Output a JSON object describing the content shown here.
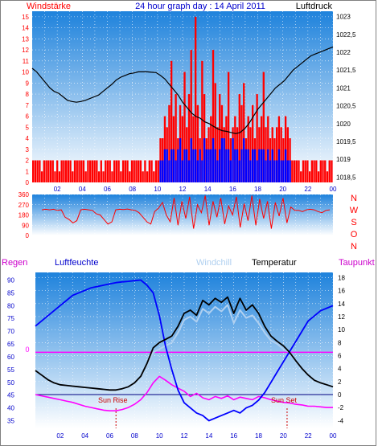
{
  "header": {
    "title": "24 hour graph day : 14 April 2011",
    "left_label": "Windstärke",
    "right_label": "Luftdruck"
  },
  "colors": {
    "wind_bar": "#ff0000",
    "wind_low_bar": "#0000ff",
    "pressure_line": "#000000",
    "direction": "#ff0000",
    "temperature": "#000000",
    "windchill": "#b0d0f0",
    "humidity": "#0000ff",
    "dewpoint": "#ff00ff",
    "zero_line": "#ff00ff",
    "grid": "#ffffff",
    "sun_text": "#cc0000",
    "axis_text_red": "#ff0000",
    "axis_text_blue": "#0000cc",
    "background_top": "#1e82dc",
    "background_bottom": "#ffffff"
  },
  "chart_data": [
    {
      "type": "bar",
      "name_label": "Windstärke",
      "y_ticks": [
        0,
        1,
        2,
        3,
        4,
        5,
        6,
        7,
        8,
        9,
        10,
        11,
        12,
        13,
        14,
        15
      ],
      "ylim": [
        0,
        15.5
      ],
      "x_ticks": [
        "02",
        "04",
        "06",
        "08",
        "10",
        "12",
        "14",
        "16",
        "18",
        "20",
        "22",
        "00"
      ],
      "series_wind": [
        2,
        2,
        2,
        2,
        1,
        2,
        2,
        2,
        2,
        2,
        1,
        2,
        1,
        2,
        2,
        2,
        2,
        2,
        1,
        2,
        2,
        2,
        2,
        2,
        1,
        2,
        2,
        2,
        2,
        2,
        1,
        2,
        1,
        2,
        2,
        2,
        1,
        2,
        2,
        2,
        1,
        2,
        2,
        2,
        1,
        2,
        2,
        2,
        2,
        2,
        1,
        2,
        1,
        2,
        2,
        1,
        2,
        2,
        4,
        4,
        6,
        5,
        7,
        11,
        6,
        8,
        4,
        7,
        6,
        10,
        5,
        8,
        12,
        6,
        15,
        7,
        4,
        11,
        8,
        4,
        5,
        6,
        12,
        9,
        5,
        8,
        7,
        5,
        6,
        10,
        4,
        5,
        6,
        5,
        8,
        7,
        9,
        4,
        6,
        5,
        7,
        4,
        8,
        5,
        6,
        10,
        5,
        6,
        4,
        5,
        4,
        5,
        6,
        5,
        4,
        6,
        5,
        4,
        2,
        2,
        2,
        2,
        1,
        2,
        2,
        2,
        1,
        2,
        2,
        2,
        1,
        2,
        2,
        2,
        1,
        2,
        2
      ],
      "series_wind_low": [
        0,
        0,
        0,
        0,
        0,
        0,
        0,
        0,
        0,
        0,
        0,
        0,
        0,
        0,
        0,
        0,
        0,
        0,
        0,
        0,
        0,
        0,
        0,
        0,
        0,
        0,
        0,
        0,
        0,
        0,
        0,
        0,
        0,
        0,
        0,
        0,
        0,
        0,
        0,
        0,
        0,
        0,
        0,
        0,
        0,
        0,
        0,
        0,
        0,
        0,
        0,
        0,
        0,
        0,
        0,
        0,
        0,
        0,
        2,
        2,
        3,
        3,
        2,
        3,
        3,
        2,
        3,
        4,
        2,
        3,
        3,
        2,
        4,
        3,
        3,
        2,
        3,
        2,
        4,
        3,
        3,
        3,
        4,
        3,
        2,
        3,
        4,
        4,
        3,
        3,
        2,
        4,
        3,
        3,
        2,
        3,
        4,
        3,
        3,
        2,
        3,
        3,
        2,
        3,
        3,
        3,
        2,
        3,
        2,
        3,
        2,
        2,
        3,
        2,
        2,
        3,
        2,
        2,
        0,
        0,
        0,
        0,
        0,
        0,
        0,
        0,
        0,
        0,
        0,
        0,
        0,
        0,
        0,
        0,
        0,
        0,
        0
      ],
      "y2_ticks": [
        1018.5,
        1019,
        1019.5,
        1020,
        1020.5,
        1021,
        1021.5,
        1022,
        1022.5,
        1023
      ],
      "y2_tick_labels": [
        "1018,5",
        "1019",
        "1019,5",
        "1020",
        "1020,5",
        "1021",
        "1021,5",
        "1022",
        "1022,5",
        "1023"
      ],
      "y2lim": [
        1018.35,
        1023.15
      ],
      "pressure": [
        1021.55,
        1021.45,
        1021.3,
        1021.15,
        1021.0,
        1020.9,
        1020.85,
        1020.75,
        1020.65,
        1020.62,
        1020.6,
        1020.62,
        1020.65,
        1020.7,
        1020.75,
        1020.8,
        1020.9,
        1021.0,
        1021.1,
        1021.22,
        1021.3,
        1021.35,
        1021.4,
        1021.42,
        1021.45,
        1021.45,
        1021.45,
        1021.44,
        1021.43,
        1021.35,
        1021.25,
        1021.1,
        1020.95,
        1020.8,
        1020.6,
        1020.45,
        1020.3,
        1020.2,
        1020.15,
        1020.05,
        1020.0,
        1019.92,
        1019.85,
        1019.8,
        1019.78,
        1019.75,
        1019.72,
        1019.75,
        1019.85,
        1020.0,
        1020.2,
        1020.4,
        1020.55,
        1020.7,
        1020.85,
        1021.0,
        1021.1,
        1021.2,
        1021.35,
        1021.5,
        1021.6,
        1021.7,
        1021.8,
        1021.9,
        1021.95,
        1022.0,
        1022.05,
        1022.1,
        1022.15
      ]
    },
    {
      "type": "line",
      "name_label": "direction",
      "y_ticks": [
        0,
        90,
        180,
        270,
        360
      ],
      "ylim": [
        0,
        360
      ],
      "direction_letters": [
        "N",
        "W",
        "S",
        "O",
        "N"
      ],
      "direction": [
        225,
        230,
        225,
        230,
        220,
        225,
        160,
        140,
        110,
        130,
        225,
        230,
        225,
        220,
        190,
        180,
        140,
        100,
        120,
        225,
        230,
        228,
        232,
        225,
        220,
        200,
        160,
        120,
        100,
        210,
        240,
        290,
        180,
        120,
        330,
        90,
        300,
        150,
        340,
        60,
        270,
        200,
        350,
        90,
        300,
        160,
        330,
        100,
        260,
        180,
        340,
        70,
        280,
        130,
        350,
        90,
        320,
        150,
        300,
        60,
        290,
        170,
        330,
        110,
        250,
        220,
        220,
        210,
        225,
        230,
        225,
        210,
        200,
        220,
        225
      ]
    },
    {
      "type": "line",
      "labels": {
        "regen": "Regen",
        "luftfeuchte": "Luftfeuchte",
        "windchill": "Windchill",
        "temperatur": "Temperatur",
        "taupunkt": "Taupunkt"
      },
      "y_ticks_humidity": [
        35,
        40,
        45,
        50,
        55,
        60,
        65,
        70,
        75,
        80,
        85,
        90
      ],
      "ylim_humidity": [
        32,
        93
      ],
      "y_ticks_temp": [
        -4,
        -2,
        0,
        2,
        4,
        6,
        8,
        10,
        12,
        14,
        16,
        18
      ],
      "ylim_temp": [
        -5.2,
        18.8
      ],
      "zero_line_label": "0",
      "zero_line_value": 6.5,
      "sun_rise_label": "Sun Rise",
      "sun_set_label": "Sun Set",
      "sun_rise_hour": 6.5,
      "sun_set_hour": 20.3,
      "x_ticks": [
        "02",
        "04",
        "06",
        "08",
        "10",
        "12",
        "14",
        "16",
        "18",
        "20",
        "22",
        "00"
      ],
      "hours": [
        0,
        0.5,
        1,
        1.5,
        2,
        2.5,
        3,
        3.5,
        4,
        4.5,
        5,
        5.5,
        6,
        6.5,
        7,
        7.5,
        8,
        8.5,
        9,
        9.5,
        10,
        10.5,
        11,
        11.5,
        12,
        12.5,
        13,
        13.5,
        14,
        14.5,
        15,
        15.5,
        16,
        16.5,
        17,
        17.5,
        18,
        18.5,
        19,
        19.5,
        20,
        20.5,
        21,
        21.5,
        22,
        22.5,
        23,
        23.5,
        24
      ],
      "temperature": [
        3.7,
        3.0,
        2.3,
        1.8,
        1.5,
        1.4,
        1.3,
        1.2,
        1.1,
        1.0,
        0.9,
        0.8,
        0.7,
        0.7,
        0.9,
        1.2,
        1.8,
        2.8,
        4.8,
        7.2,
        8.0,
        8.5,
        9.0,
        10.5,
        12.5,
        13.0,
        12.2,
        14.5,
        13.8,
        14.8,
        14.2,
        15.0,
        12.5,
        14.8,
        13.0,
        13.8,
        12.5,
        10.5,
        9.0,
        8.2,
        7.5,
        6.5,
        5.2,
        4.0,
        3.0,
        2.2,
        1.8,
        1.5,
        1.2
      ],
      "windchill": [
        3.7,
        3.0,
        2.3,
        1.8,
        1.5,
        1.4,
        1.3,
        1.2,
        1.1,
        1.0,
        0.9,
        0.8,
        0.7,
        0.7,
        0.9,
        1.2,
        1.8,
        2.8,
        4.5,
        6.5,
        7.0,
        7.5,
        8.0,
        9.5,
        11.5,
        12.0,
        11.2,
        13.2,
        12.5,
        13.5,
        12.8,
        13.8,
        11.0,
        13.0,
        11.8,
        12.2,
        11.0,
        9.5,
        8.3,
        7.8,
        7.0,
        6.5,
        5.2,
        4.0,
        3.0,
        2.2,
        1.8,
        1.5,
        1.2
      ],
      "humidity": [
        72,
        74,
        76,
        78,
        80,
        82,
        84,
        85,
        86,
        87,
        87.5,
        88,
        88.5,
        89,
        89.3,
        89.5,
        89.8,
        90,
        88,
        85,
        76,
        64,
        55,
        47,
        42,
        40,
        38,
        37,
        35,
        36,
        37,
        38,
        39,
        38,
        40,
        41,
        43,
        46,
        50,
        54,
        58,
        62,
        66,
        70,
        74,
        76,
        78,
        79,
        80
      ],
      "dewpoint": [
        0,
        -0.2,
        -0.4,
        -0.6,
        -0.8,
        -1.0,
        -1.2,
        -1.5,
        -1.8,
        -2.0,
        -2.2,
        -2.4,
        -2.5,
        -2.5,
        -2.3,
        -2.0,
        -1.5,
        -0.8,
        0.3,
        1.8,
        2.8,
        2.2,
        1.5,
        1.0,
        0.5,
        -0.3,
        0.2,
        -0.5,
        -0.8,
        -0.3,
        -0.6,
        -0.2,
        -0.8,
        -0.4,
        -0.6,
        -0.8,
        -0.3,
        -0.5,
        -0.8,
        -1.0,
        -1.2,
        -1.3,
        -1.5,
        -1.6,
        -1.8,
        -1.8,
        -1.9,
        -2.0,
        -2.0
      ]
    }
  ]
}
